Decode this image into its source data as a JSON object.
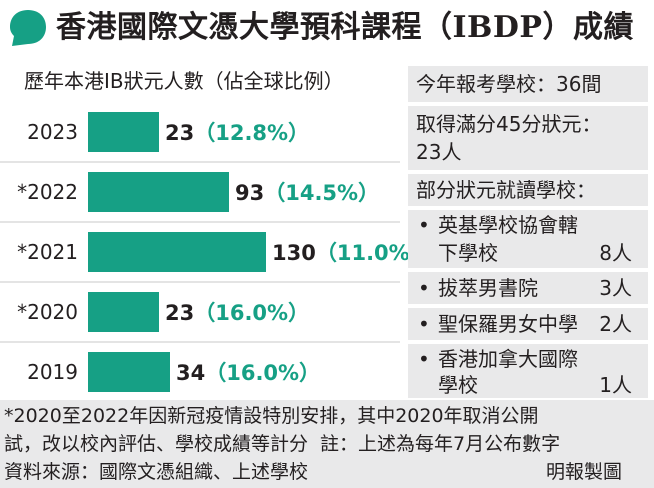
{
  "header": {
    "title": "香港國際文憑大學預科課程（IBDP）成績"
  },
  "colors": {
    "accent": "#16a085",
    "panel": "#e9e9ea",
    "text": "#231f20"
  },
  "chart_data": {
    "type": "bar",
    "title": "歷年本港IB狀元人數（佔全球比例）",
    "categories": [
      "2023",
      "*2022",
      "*2021",
      "*2020",
      "2019"
    ],
    "values": [
      23,
      93,
      130,
      23,
      34
    ],
    "shares": [
      "12.8%",
      "14.5%",
      "11.0%",
      "16.0%",
      "16.0%"
    ],
    "bar_color": "#16a085",
    "orientation": "horizontal"
  },
  "info": {
    "schools_count": "今年報考學校：36間",
    "full_marks_line1": "取得滿分45分狀元：",
    "full_marks_line2": "23人",
    "schools_header": "部分狀元就讀學校：",
    "schools": [
      {
        "name_line1": "英基學校協會轄",
        "name_line2": "下學校",
        "count": "8人"
      },
      {
        "name_line1": "拔萃男書院",
        "name_line2": "",
        "count": "3人"
      },
      {
        "name_line1": "聖保羅男女中學",
        "name_line2": "",
        "count": "2人"
      },
      {
        "name_line1": "香港加拿大國際",
        "name_line2": "學校",
        "count": "1人"
      }
    ],
    "bullet": "•"
  },
  "footer": {
    "line1": "*2020至2022年因新冠疫情設特別安排，其中2020年取消公開",
    "line2": "試，改以校內評估、學校成績等計分",
    "line2_note": "註：上述為每年7月公布數字",
    "line3": "資料來源：國際文憑組織、上述學校",
    "credit": "明報製圖"
  }
}
